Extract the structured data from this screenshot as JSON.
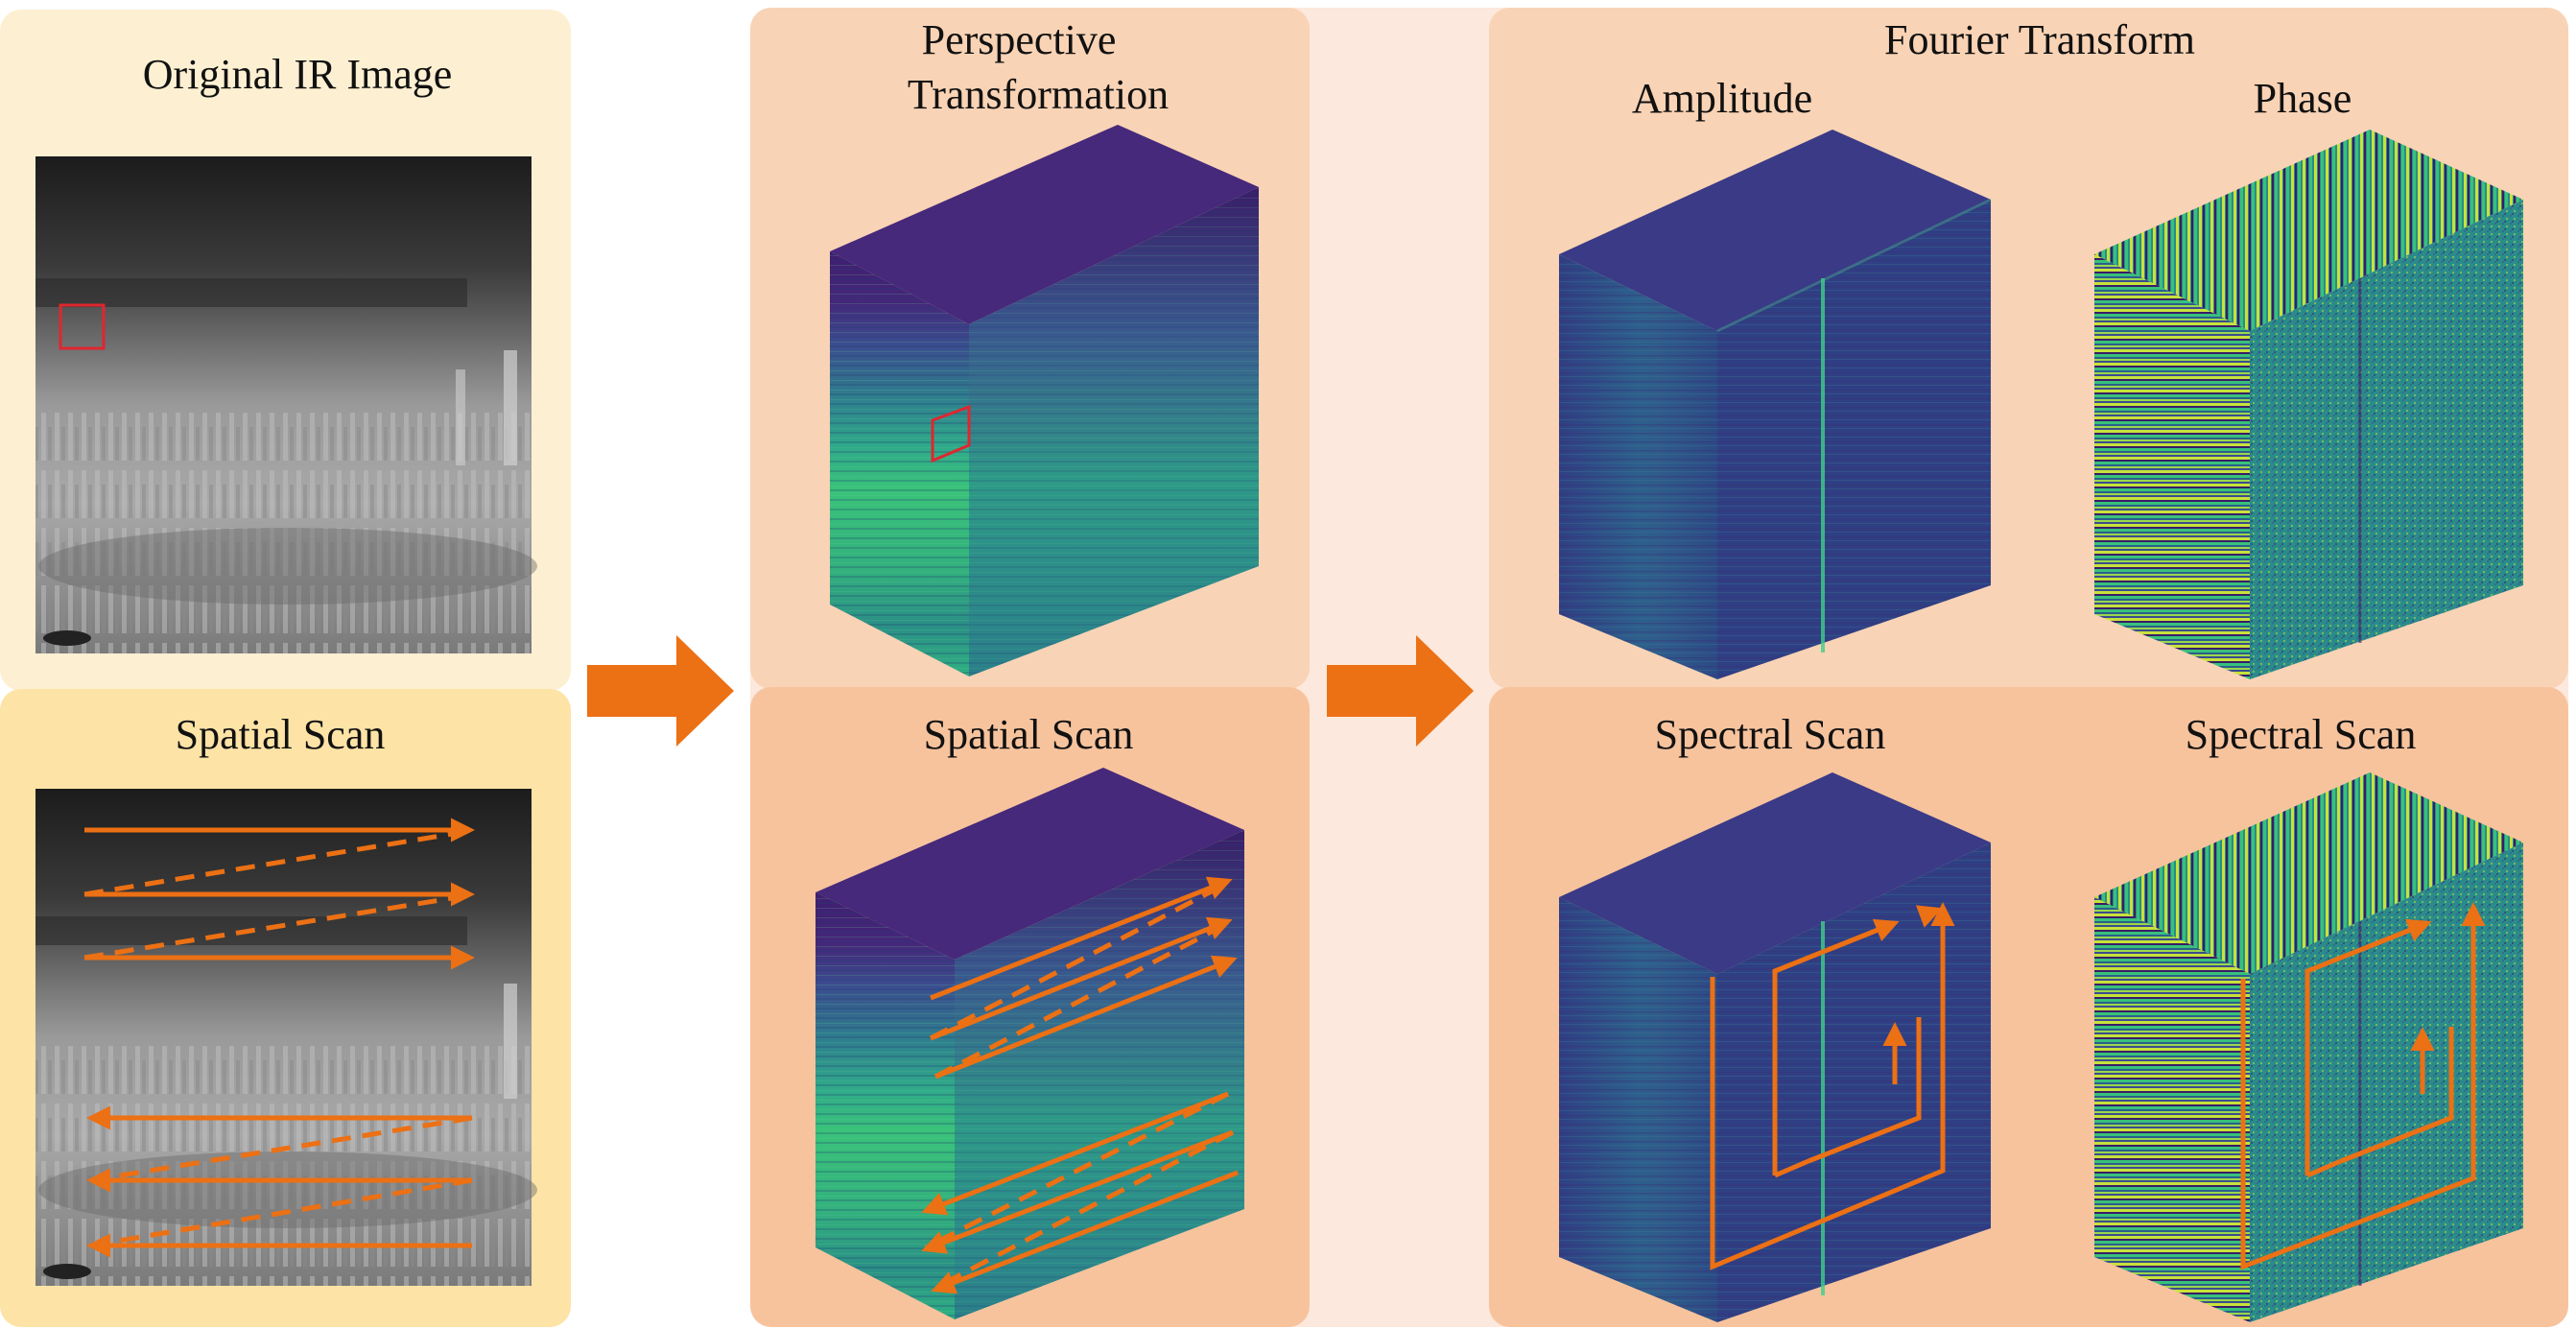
{
  "panels": {
    "original": {
      "title": "Original IR Image"
    },
    "spatial_scan_left": {
      "title": "Spatial Scan"
    },
    "perspective": {
      "title_line1": "Perspective",
      "title_line2": "Transformation"
    },
    "spatial_scan_mid": {
      "title": "Spatial Scan"
    },
    "fourier": {
      "title": "Fourier Transform",
      "amplitude_label": "Amplitude",
      "phase_label": "Phase"
    },
    "spectral_scan_amp": {
      "title": "Spectral Scan"
    },
    "spectral_scan_phase": {
      "title": "Spectral Scan"
    }
  },
  "colors": {
    "panel_left_top": "#fdf0d2",
    "panel_left_bottom": "#fde3a6",
    "panel_right_top": "#f9d3b5",
    "panel_right_bottom": "#f7c39d",
    "panel_outer": "#fce8dc",
    "arrow": "#ec7014",
    "highlight_box": "#e0262e",
    "viridis_dark": "#3f1e6f",
    "viridis_mid": "#2a8c8a",
    "viridis_light": "#37c17a"
  }
}
